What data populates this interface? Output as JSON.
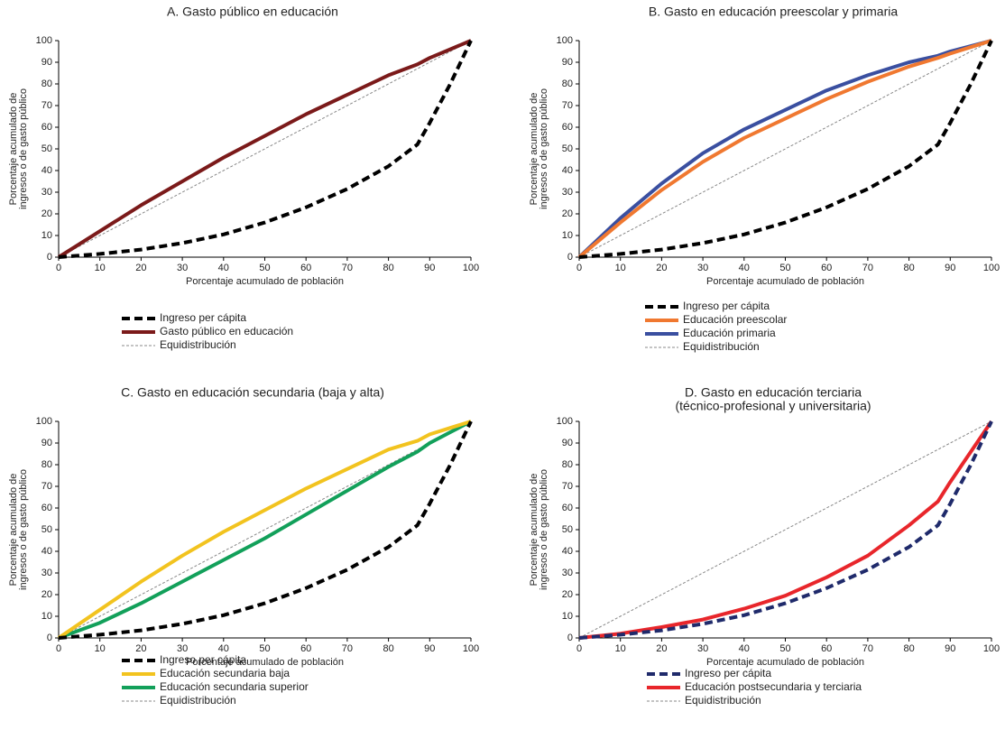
{
  "chart_data": [
    {
      "type": "line",
      "title": "A. Gasto público en educación",
      "xlabel": "Porcentaje acumulado de población",
      "ylabel": [
        "Porcentaje acumulado de",
        "ingresos o de gasto público"
      ],
      "x": [
        0,
        10,
        20,
        30,
        40,
        50,
        60,
        70,
        80,
        87,
        90,
        95,
        100
      ],
      "xlim": [
        0,
        100
      ],
      "ylim": [
        0,
        100
      ],
      "xticks": [
        0,
        10,
        20,
        30,
        40,
        50,
        60,
        70,
        80,
        90,
        100
      ],
      "yticks": [
        0,
        10,
        20,
        30,
        40,
        50,
        60,
        70,
        80,
        90,
        100
      ],
      "series": [
        {
          "name": "Ingreso per cápita",
          "color": "#000000",
          "style": "dashed",
          "values": [
            0,
            1.5,
            3.5,
            6.5,
            10.5,
            16,
            23,
            31.5,
            42,
            52,
            62,
            80,
            100
          ]
        },
        {
          "name": "Gasto público en educación",
          "color": "#7b1a1a",
          "style": "solid",
          "values": [
            0,
            12,
            24,
            35,
            46,
            56,
            66,
            75,
            84,
            89,
            92,
            96,
            100
          ]
        },
        {
          "name": "Equidistribución",
          "color": "#888888",
          "style": "dotted",
          "values": [
            0,
            10,
            20,
            30,
            40,
            50,
            60,
            70,
            80,
            87,
            90,
            95,
            100
          ]
        }
      ]
    },
    {
      "type": "line",
      "title": "B. Gasto en educación preescolar y primaria",
      "xlabel": "Porcentaje acumulado de población",
      "ylabel": [
        "Porcentaje acumulado de",
        "ingresos o de gasto público"
      ],
      "x": [
        0,
        10,
        20,
        30,
        40,
        50,
        60,
        70,
        80,
        87,
        90,
        95,
        100
      ],
      "xlim": [
        0,
        100
      ],
      "ylim": [
        0,
        100
      ],
      "xticks": [
        0,
        10,
        20,
        30,
        40,
        50,
        60,
        70,
        80,
        90,
        100
      ],
      "yticks": [
        0,
        10,
        20,
        30,
        40,
        50,
        60,
        70,
        80,
        90,
        100
      ],
      "series": [
        {
          "name": "Ingreso per cápita",
          "color": "#000000",
          "style": "dashed",
          "values": [
            0,
            1.5,
            3.5,
            6.5,
            10.5,
            16,
            23,
            31.5,
            42,
            52,
            62,
            80,
            100
          ]
        },
        {
          "name": "Educación preescolar",
          "color": "#f07830",
          "style": "solid",
          "values": [
            0,
            16,
            31,
            44,
            55,
            64,
            73,
            81,
            88,
            92,
            94,
            97,
            100
          ]
        },
        {
          "name": "Educación primaria",
          "color": "#3a4fa0",
          "style": "solid",
          "values": [
            0,
            18,
            34,
            48,
            59,
            68,
            77,
            84,
            90,
            93,
            95,
            97.5,
            100
          ]
        },
        {
          "name": "Equidistribución",
          "color": "#888888",
          "style": "dotted",
          "values": [
            0,
            10,
            20,
            30,
            40,
            50,
            60,
            70,
            80,
            87,
            90,
            95,
            100
          ]
        }
      ]
    },
    {
      "type": "line",
      "title": "C. Gasto en educación secundaria (baja y alta)",
      "xlabel": "Porcentaje acumulado de población",
      "ylabel": [
        "Porcentaje acumulado de",
        "ingresos o de gasto público"
      ],
      "x": [
        0,
        10,
        20,
        30,
        40,
        50,
        60,
        70,
        80,
        87,
        90,
        95,
        100
      ],
      "xlim": [
        0,
        100
      ],
      "ylim": [
        0,
        100
      ],
      "xticks": [
        0,
        10,
        20,
        30,
        40,
        50,
        60,
        70,
        80,
        90,
        100
      ],
      "yticks": [
        0,
        10,
        20,
        30,
        40,
        50,
        60,
        70,
        80,
        90,
        100
      ],
      "series": [
        {
          "name": "Ingreso per cápita",
          "color": "#000000",
          "style": "dashed",
          "values": [
            0,
            1.5,
            3.5,
            6.5,
            10.5,
            16,
            23,
            31.5,
            42,
            52,
            62,
            80,
            100
          ]
        },
        {
          "name": "Educación secundaria baja",
          "color": "#f2c31f",
          "style": "solid",
          "values": [
            0,
            13,
            26,
            38,
            49,
            59,
            69,
            78,
            87,
            91,
            94,
            97,
            100
          ]
        },
        {
          "name": "Educación secundaria superior",
          "color": "#12a05a",
          "style": "solid",
          "values": [
            0,
            7,
            16,
            26,
            36,
            46,
            57,
            68,
            79,
            86,
            90,
            95,
            100
          ]
        },
        {
          "name": "Equidistribución",
          "color": "#888888",
          "style": "dotted",
          "values": [
            0,
            10,
            20,
            30,
            40,
            50,
            60,
            70,
            80,
            87,
            90,
            95,
            100
          ]
        }
      ]
    },
    {
      "type": "line",
      "title": "D. Gasto en educación terciaria",
      "subtitle": "(técnico-profesional y universitaria)",
      "xlabel": "Porcentaje acumulado de población",
      "ylabel": [
        "Porcentaje acumulado de",
        "ingresos o de gasto público"
      ],
      "x": [
        0,
        10,
        20,
        30,
        40,
        50,
        60,
        70,
        80,
        87,
        90,
        95,
        100
      ],
      "xlim": [
        0,
        100
      ],
      "ylim": [
        0,
        100
      ],
      "xticks": [
        0,
        10,
        20,
        30,
        40,
        50,
        60,
        70,
        80,
        90,
        100
      ],
      "yticks": [
        0,
        10,
        20,
        30,
        40,
        50,
        60,
        70,
        80,
        90,
        100
      ],
      "series": [
        {
          "name": "Ingreso per cápita",
          "color": "#1f2a6b",
          "style": "dashed",
          "values": [
            0,
            1.5,
            3.5,
            6.5,
            10.5,
            16,
            23,
            31.5,
            42,
            52,
            62,
            80,
            100
          ]
        },
        {
          "name": "Educación postsecundaria y terciaria",
          "color": "#e8262b",
          "style": "solid",
          "values": [
            0,
            2,
            5,
            8.5,
            13.5,
            19.5,
            28,
            38,
            52,
            63,
            72,
            86,
            100
          ]
        },
        {
          "name": "Equidistribución",
          "color": "#888888",
          "style": "dotted",
          "values": [
            0,
            10,
            20,
            30,
            40,
            50,
            60,
            70,
            80,
            87,
            90,
            95,
            100
          ]
        }
      ]
    }
  ]
}
